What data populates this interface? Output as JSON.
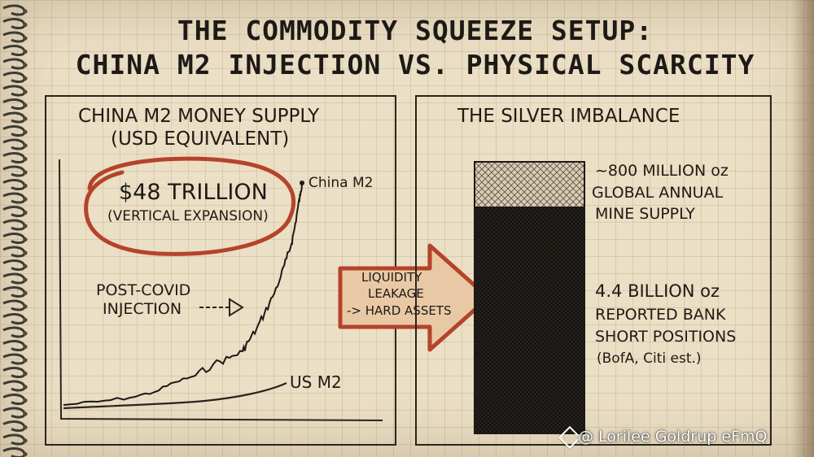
{
  "title": {
    "line1": "THE COMMODITY SQUEEZE SETUP:",
    "line2": "CHINA M2 INJECTION VS. PHYSICAL SCARCITY"
  },
  "left_panel": {
    "title_line1": "CHINA M2 MONEY SUPPLY",
    "title_line2": "(USD EQUIVALENT)",
    "callout_value": "$48 TRILLION",
    "callout_sub": "(VERTICAL EXPANSION)",
    "series_label_china": "China M2",
    "series_label_us": "US M2",
    "annotation_line1": "POST-COVID",
    "annotation_line2": "INJECTION"
  },
  "arrow": {
    "line1": "LIQUIDITY",
    "line2": "LEAKAGE",
    "line3": "-> HARD ASSETS"
  },
  "right_panel": {
    "title": "THE SILVER IMBALANCE",
    "supply_line1": "~800 MILLION oz",
    "supply_line2": "GLOBAL ANNUAL",
    "supply_line3": "MINE SUPPLY",
    "shorts_line1": "4.4 BILLION oz",
    "shorts_line2": "REPORTED BANK",
    "shorts_line3": "SHORT POSITIONS",
    "shorts_line4": "(BofA, Citi est.)"
  },
  "bar_values": {
    "mine_supply_moz": 800,
    "short_positions_moz": 4400
  },
  "watermark": "@ Lorilee Goldrup eFmQ",
  "colors": {
    "accent_red": "#b5432a",
    "arrow_fill": "#e9c9a5",
    "ink": "#1f1a14"
  }
}
